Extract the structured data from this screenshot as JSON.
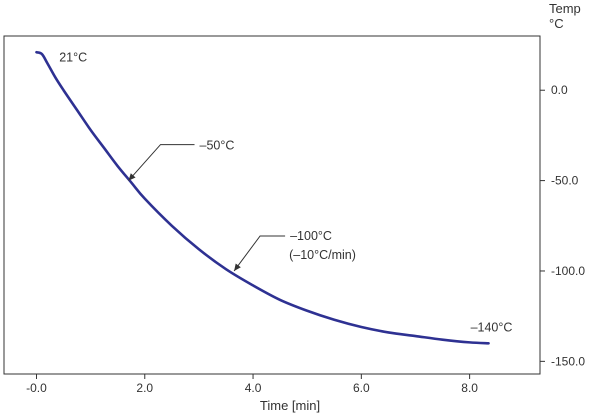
{
  "chart_data": {
    "type": "line",
    "title": "",
    "xlabel": "Time [min]",
    "ylabel": "Temp",
    "yunit": "°C",
    "xlim": [
      -0.6,
      9.3
    ],
    "ylim": [
      -157,
      30
    ],
    "xticks": [
      0,
      2,
      4,
      6,
      8
    ],
    "xtick_labels": [
      "-0.0",
      "2.0",
      "4.0",
      "6.0",
      "8.0"
    ],
    "yticks": [
      0,
      -50,
      -100,
      -150
    ],
    "ytick_labels": [
      "0.0",
      "-50.0",
      "-100.0",
      "-150.0"
    ],
    "y_axis_side": "right",
    "grid": false,
    "series_color": "#2e3192",
    "series": [
      {
        "x": [
          0.0,
          0.1,
          0.2,
          0.35,
          0.5,
          0.75,
          1.0,
          1.25,
          1.5,
          1.75,
          2.0,
          2.5,
          3.0,
          3.5,
          4.0,
          4.5,
          5.0,
          5.5,
          6.0,
          6.5,
          7.0,
          7.5,
          8.0,
          8.35
        ],
        "y": [
          21,
          20,
          15,
          7,
          0,
          -11,
          -22,
          -32,
          -42,
          -51,
          -60,
          -75,
          -88,
          -99,
          -108,
          -116,
          -122,
          -127,
          -131,
          -134,
          -136,
          -138,
          -139.5,
          -140
        ]
      }
    ],
    "annotations": [
      {
        "text": "21°C",
        "x": 0.05,
        "y": 21,
        "arrow": false
      },
      {
        "text": "–50°C",
        "x": 1.7,
        "y": -50,
        "arrow": true
      },
      {
        "text": "–100°C",
        "x": 3.65,
        "y": -100,
        "arrow": true
      },
      {
        "text": "(–10°C/min)",
        "x": 3.65,
        "y": -100,
        "arrow": false
      },
      {
        "text": "–140°C",
        "x": 8.35,
        "y": -140,
        "arrow": false
      }
    ]
  }
}
